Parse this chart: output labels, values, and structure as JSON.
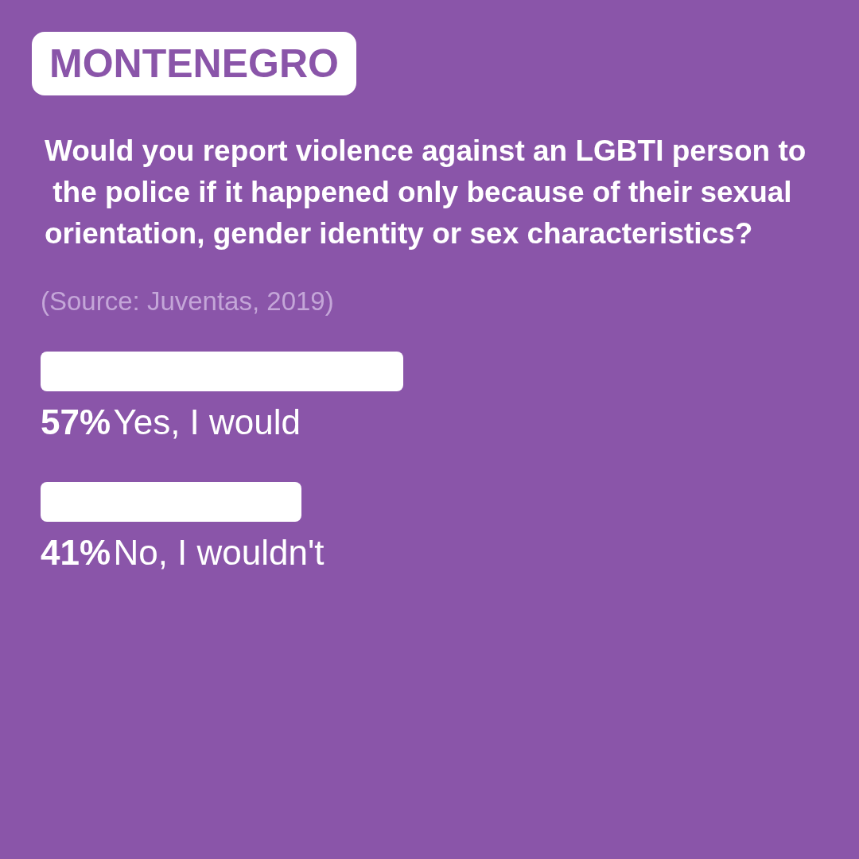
{
  "chart_data": {
    "type": "bar",
    "orientation": "horizontal",
    "subtitle": "MONTENEGRO",
    "title": "Would you report violence against an LGBTI person to the police if it happened only because of their sexual orientation, gender identity or sex characteristics?",
    "annotations": [
      "(Source: Juventas, 2019)"
    ],
    "categories": [
      "Yes, I would",
      "No, I wouldn't"
    ],
    "values": [
      57,
      41
    ],
    "value_labels": [
      "57%",
      "41%"
    ],
    "color": "#ffffff",
    "tick_labels": false
  }
}
